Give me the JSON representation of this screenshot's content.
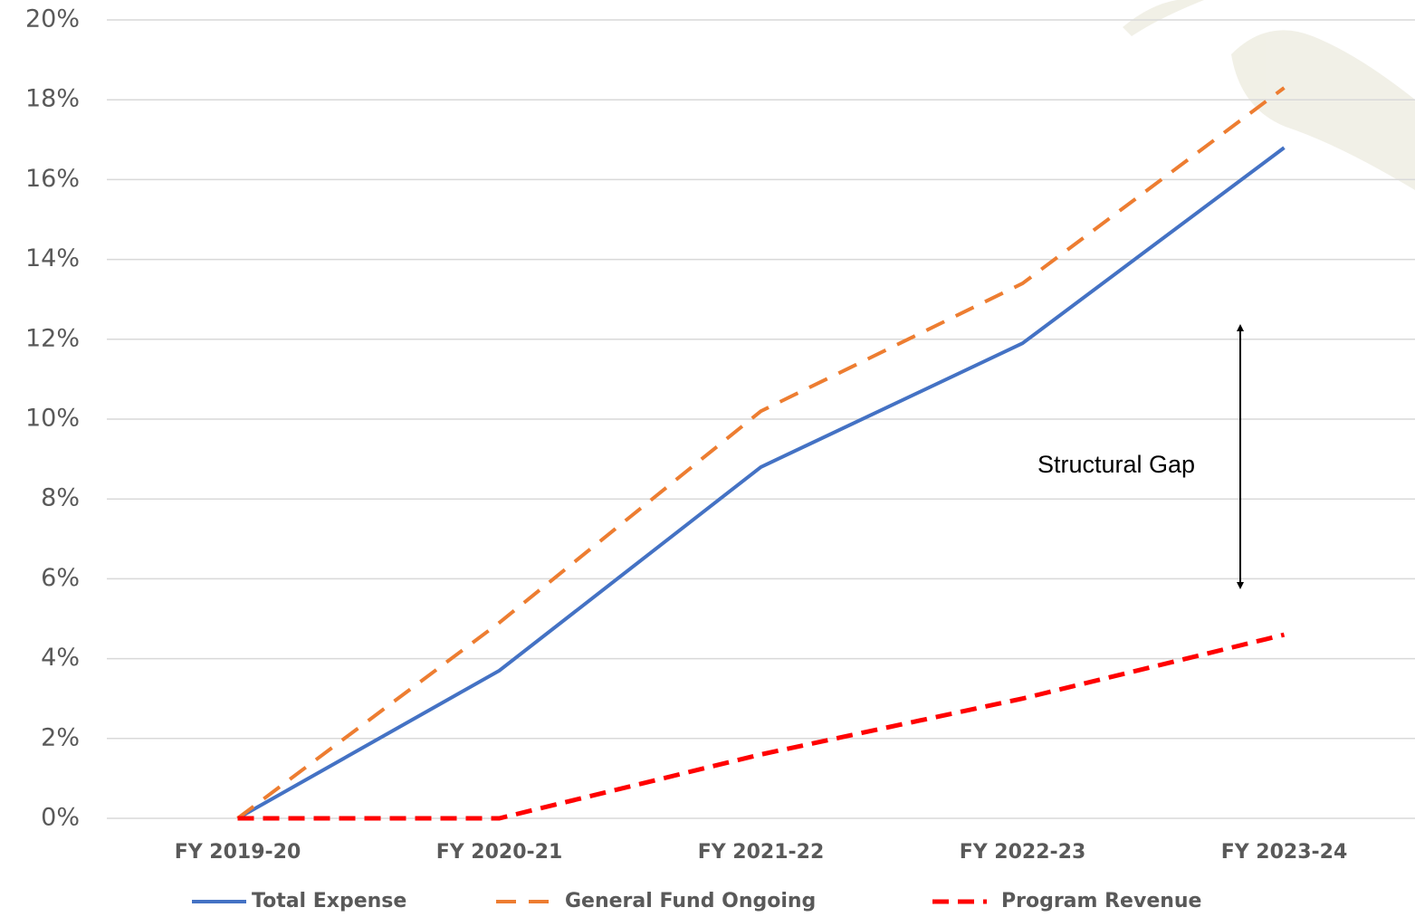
{
  "chart_data": {
    "type": "line",
    "categories": [
      "FY 2019-20",
      "FY 2020-21",
      "FY 2021-22",
      "FY 2022-23",
      "FY 2023-24"
    ],
    "series": [
      {
        "name": "Total Expense",
        "color": "#4472c4",
        "dash": "solid",
        "values": [
          0,
          3.7,
          8.8,
          11.9,
          16.8
        ]
      },
      {
        "name": "General Fund Ongoing",
        "color": "#ed7d31",
        "dash": "dashed",
        "values": [
          0,
          4.9,
          10.2,
          13.4,
          18.3
        ]
      },
      {
        "name": "Program Revenue",
        "color": "#ff0000",
        "dash": "dashed",
        "values": [
          0,
          0,
          1.6,
          3.0,
          4.6
        ]
      }
    ],
    "ylim": [
      0,
      20
    ],
    "yticks": [
      {
        "value": 0,
        "label": "0%"
      },
      {
        "value": 2,
        "label": "2%"
      },
      {
        "value": 4,
        "label": "4%"
      },
      {
        "value": 6,
        "label": "6%"
      },
      {
        "value": 8,
        "label": "8%"
      },
      {
        "value": 10,
        "label": "10%"
      },
      {
        "value": 12,
        "label": "12%"
      },
      {
        "value": 14,
        "label": "14%"
      },
      {
        "value": 16,
        "label": "16%"
      },
      {
        "value": 18,
        "label": "18%"
      },
      {
        "value": 20,
        "label": "20%"
      }
    ],
    "grid": true,
    "legend": "bottom",
    "annotation": "Structural Gap"
  }
}
